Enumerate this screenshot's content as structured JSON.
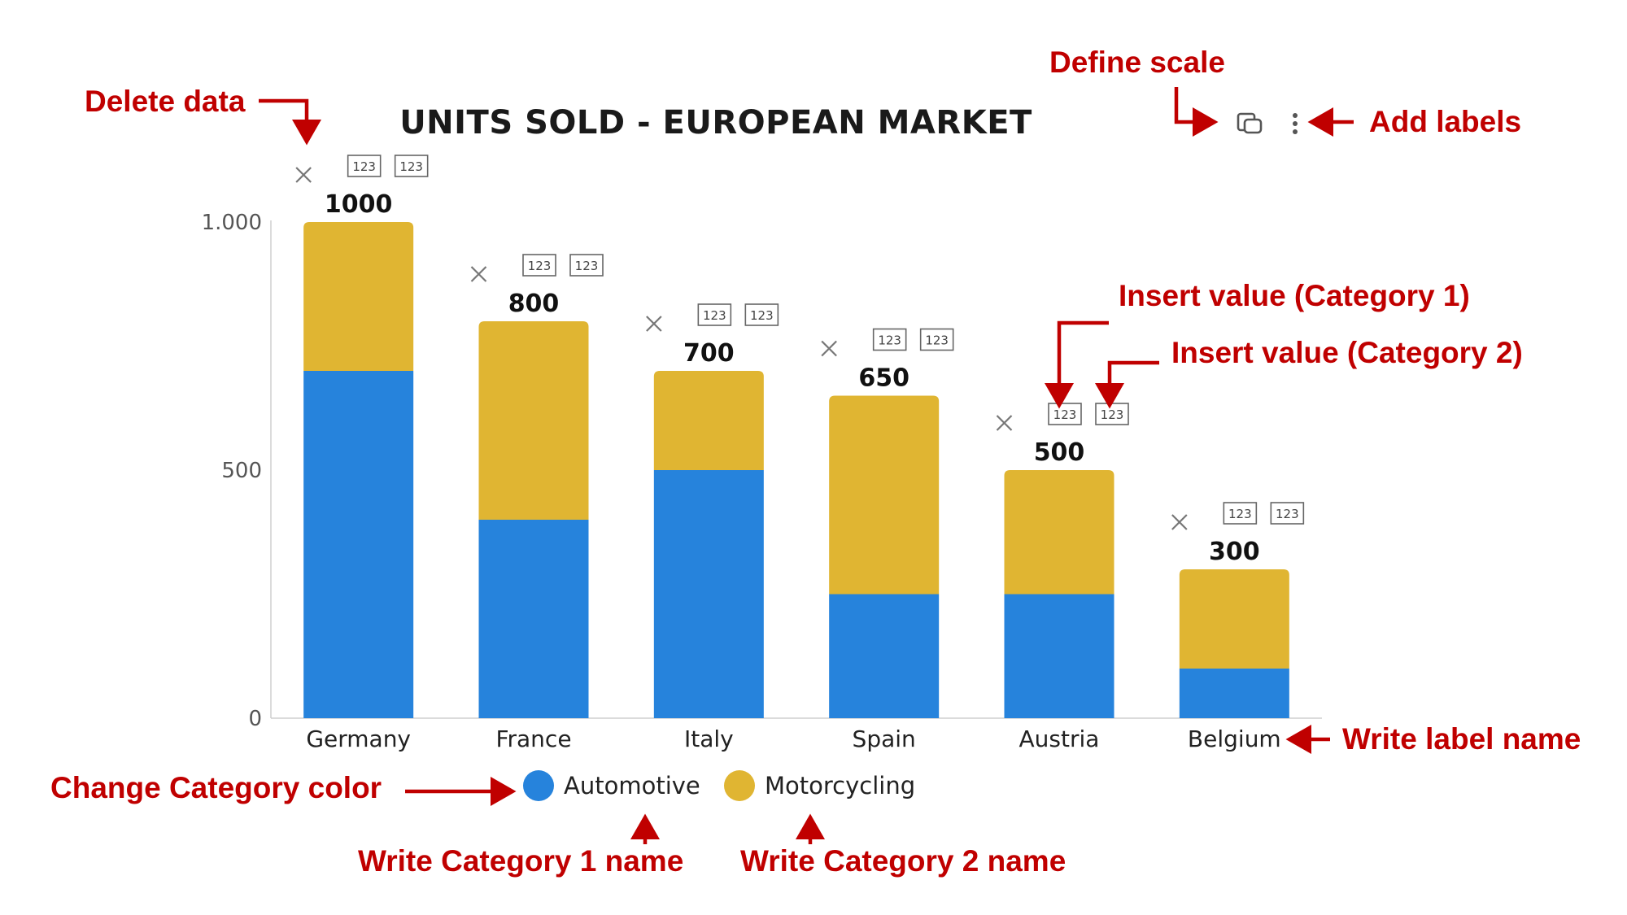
{
  "chart_data": {
    "type": "bar",
    "stacked": true,
    "title": "UNITS SOLD - EUROPEAN MARKET",
    "categories": [
      "Germany",
      "France",
      "Italy",
      "Spain",
      "Austria",
      "Belgium"
    ],
    "series": [
      {
        "name": "Automotive",
        "color": "#2683dc",
        "values": [
          700,
          400,
          500,
          250,
          250,
          100
        ]
      },
      {
        "name": "Motorcycling",
        "color": "#e0b532",
        "values": [
          300,
          400,
          200,
          400,
          250,
          200
        ]
      }
    ],
    "totals": [
      "1000",
      "800",
      "700",
      "650",
      "500",
      "300"
    ],
    "yticks": [
      {
        "value": 0,
        "label": "0"
      },
      {
        "value": 500,
        "label": "500"
      },
      {
        "value": 1000,
        "label": "1.000"
      }
    ],
    "ylim": [
      0,
      1000
    ],
    "grid": false,
    "legend": "bottom",
    "value_button_label": "123"
  },
  "annotations": {
    "delete_data": "Delete data",
    "define_scale": "Define scale",
    "add_labels": "Add labels",
    "insert_value_1": "Insert value (Category 1)",
    "insert_value_2": "Insert value (Category 2)",
    "write_label_name": "Write label name",
    "change_category_color": "Change Category color",
    "write_category_1": "Write Category 1 name",
    "write_category_2": "Write Category 2 name"
  },
  "icons": {
    "delete": "close-icon",
    "scale": "copy-scale-icon",
    "menu": "more-vertical-icon"
  },
  "colors": {
    "annotation": "#c00000"
  }
}
